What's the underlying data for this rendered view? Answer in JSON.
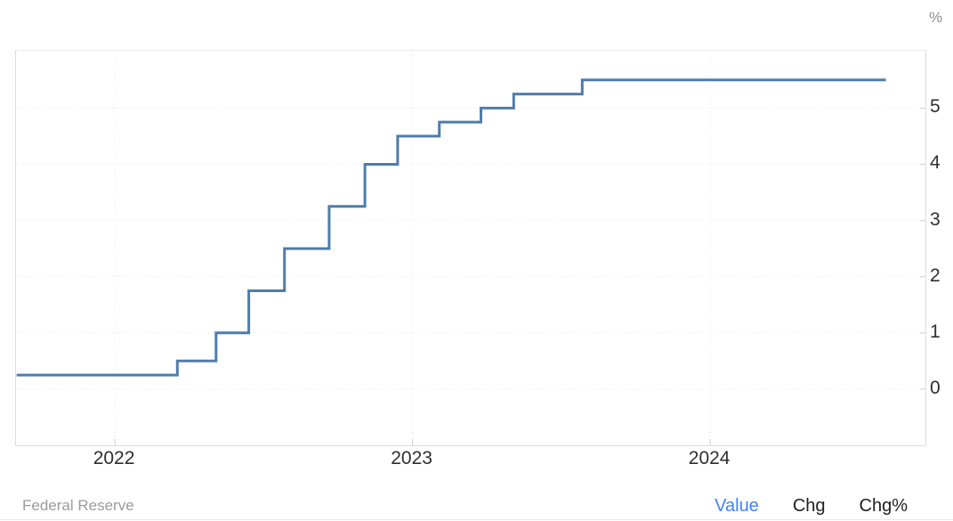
{
  "unit_label": "%",
  "source": "Federal Reserve",
  "footer": {
    "value_label": "Value",
    "chg_label": "Chg",
    "chgpct_label": "Chg%"
  },
  "colors": {
    "line": "#4e7dab",
    "value_link": "#3f82f7",
    "axis_text": "#2e2e2e",
    "muted_text": "#9b9b9b",
    "grid": "#e7e7e7",
    "tick": "#cfcfcf",
    "border": "#dcdcdc"
  },
  "chart_data": {
    "type": "line",
    "step": true,
    "title": "",
    "xlabel": "",
    "ylabel": "%",
    "legend_position": "none",
    "grid": true,
    "xlim": [
      2021.668,
      2024.723
    ],
    "ylim": [
      -1.0,
      6.02
    ],
    "x_ticks": [
      {
        "value": 2022,
        "label": "2022"
      },
      {
        "value": 2023,
        "label": "2023"
      },
      {
        "value": 2024,
        "label": "2024"
      }
    ],
    "y_ticks": [
      {
        "value": 0,
        "label": "0"
      },
      {
        "value": 1,
        "label": "1"
      },
      {
        "value": 2,
        "label": "2"
      },
      {
        "value": 3,
        "label": "3"
      },
      {
        "value": 4,
        "label": "4"
      },
      {
        "value": 5,
        "label": "5"
      }
    ],
    "series": [
      {
        "name": "value",
        "color": "#4e7dab",
        "points": [
          {
            "x": 2021.67,
            "y": 0.25
          },
          {
            "x": 2022.21,
            "y": 0.5
          },
          {
            "x": 2022.34,
            "y": 1.0
          },
          {
            "x": 2022.45,
            "y": 1.75
          },
          {
            "x": 2022.57,
            "y": 2.5
          },
          {
            "x": 2022.72,
            "y": 3.25
          },
          {
            "x": 2022.84,
            "y": 4.0
          },
          {
            "x": 2022.95,
            "y": 4.5
          },
          {
            "x": 2023.09,
            "y": 4.75
          },
          {
            "x": 2023.23,
            "y": 5.0
          },
          {
            "x": 2023.34,
            "y": 5.25
          },
          {
            "x": 2023.57,
            "y": 5.5
          }
        ],
        "x_end": 2024.59
      }
    ]
  }
}
